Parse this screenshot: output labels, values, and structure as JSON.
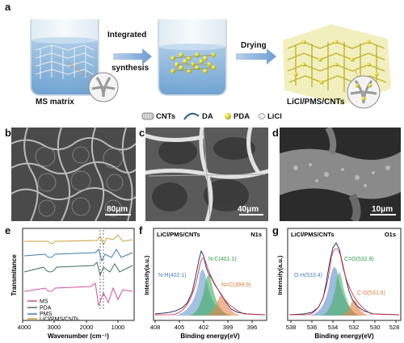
{
  "panel_a": {
    "label": "a",
    "arrow1_text": [
      "Integrated",
      "synthesis"
    ],
    "arrow2_text": "Drying",
    "beaker1_label": "MS matrix",
    "product_label": "LiCl/PMS/CNTs",
    "legend": [
      {
        "label": "CNTs",
        "icon": "cnt-icon"
      },
      {
        "label": "DA",
        "icon": "da-curve-icon"
      },
      {
        "label": "PDA",
        "icon": "pda-sphere-icon"
      },
      {
        "label": "LiCl",
        "icon": "licl-sphere-icon"
      }
    ]
  },
  "panel_b": {
    "label": "b",
    "scale": "80μm"
  },
  "panel_c": {
    "label": "c",
    "scale": "40μm"
  },
  "panel_d": {
    "label": "d",
    "scale": "10μm"
  },
  "panel_e": {
    "label": "e",
    "chart_data": {
      "type": "line",
      "ylabel": "Transmitance",
      "xlabel": "Wavenumber (cm⁻¹)",
      "xlim": [
        4000,
        500
      ],
      "xticks": [
        4000,
        3000,
        2000,
        1000
      ],
      "legend": [
        {
          "name": "MS",
          "color": "#d24fa0"
        },
        {
          "name": "PDA",
          "color": "#3f6f63"
        },
        {
          "name": "PMS",
          "color": "#3a7fb0"
        },
        {
          "name": "LiCl/PMS/CNTs",
          "color": "#c9a23a"
        }
      ]
    }
  },
  "panel_f": {
    "label": "f",
    "chart_data": {
      "type": "line",
      "title_left": "LiCl/PMS/CNTs",
      "title_right": "N1s",
      "ylabel": "Intensity(a.u.)",
      "xlabel": "Binding energy(eV)",
      "xlim": [
        408,
        394
      ],
      "xticks": [
        408,
        405,
        402,
        399,
        396
      ],
      "peaks": [
        {
          "label": "N-H(402.1)",
          "center": 402.1,
          "color": "#5a8ec8"
        },
        {
          "label": "N-C(401.1)",
          "center": 401.1,
          "color": "#3fae5a"
        },
        {
          "label": "N=C(399.9)",
          "center": 399.9,
          "color": "#e8874a"
        }
      ]
    }
  },
  "panel_g": {
    "label": "g",
    "chart_data": {
      "type": "line",
      "title_left": "LiCl/PMS/CNTs",
      "title_right": "O1s",
      "ylabel": "Intensity(a.u.)",
      "xlabel": "Binding energy(eV)",
      "xlim": [
        538,
        527
      ],
      "xticks": [
        538,
        536,
        534,
        532,
        530,
        528
      ],
      "peaks": [
        {
          "label": "O-H(533.4)",
          "center": 533.4,
          "color": "#5a8ec8"
        },
        {
          "label": "C=O(532.9)",
          "center": 532.9,
          "color": "#3fae5a"
        },
        {
          "label": "C-O(531.6)",
          "center": 531.6,
          "color": "#e8874a"
        }
      ]
    }
  }
}
